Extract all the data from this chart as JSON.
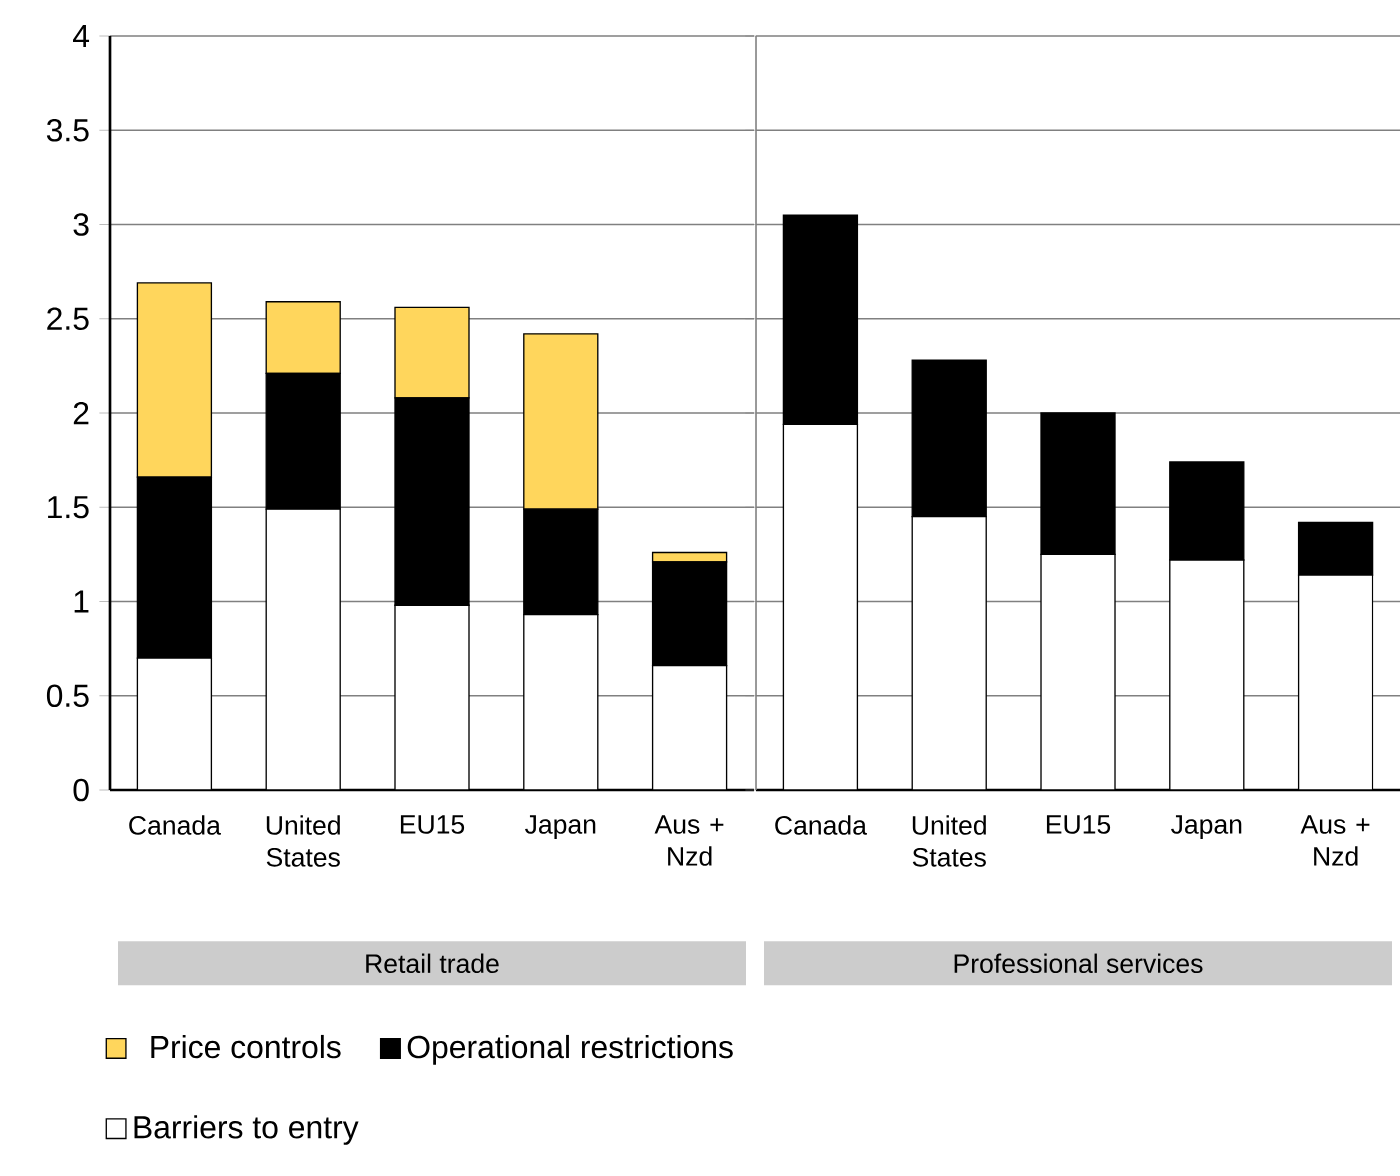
{
  "chart_data": [
    {
      "type": "bar",
      "stacked": true,
      "xlabel": "Retail trade",
      "categories": [
        "Canada",
        "United States",
        "EU15",
        "Japan",
        "Aus + Nzd"
      ],
      "series": [
        {
          "name": "Barriers to entry",
          "color": "#ffffff",
          "values": [
            0.7,
            1.49,
            0.98,
            0.93,
            0.66
          ]
        },
        {
          "name": "Operational restrictions",
          "color": "#000000",
          "values": [
            0.96,
            0.72,
            1.1,
            0.56,
            0.55
          ]
        },
        {
          "name": "Price controls",
          "color": "#ffd65c",
          "values": [
            1.03,
            0.38,
            0.48,
            0.93,
            0.05
          ]
        }
      ],
      "ylim": [
        0,
        4
      ],
      "yticks": [
        0,
        0.5,
        1,
        1.5,
        2,
        2.5,
        3,
        3.5,
        4
      ],
      "grid": "y",
      "legend": "bottom"
    },
    {
      "type": "bar",
      "stacked": true,
      "xlabel": "Professional services",
      "categories": [
        "Canada",
        "United States",
        "EU15",
        "Japan",
        "Aus + Nzd"
      ],
      "series": [
        {
          "color": "#ffffff",
          "values": [
            1.94,
            1.45,
            1.25,
            1.22,
            1.14
          ]
        },
        {
          "color": "#000000",
          "values": [
            1.11,
            0.83,
            0.75,
            0.52,
            0.28
          ]
        }
      ],
      "ylim": [
        0,
        4
      ],
      "yticks": [
        0,
        0.5,
        1,
        1.5,
        2,
        2.5,
        3,
        3.5,
        4
      ],
      "grid": "y",
      "tick_labels": "x"
    }
  ]
}
